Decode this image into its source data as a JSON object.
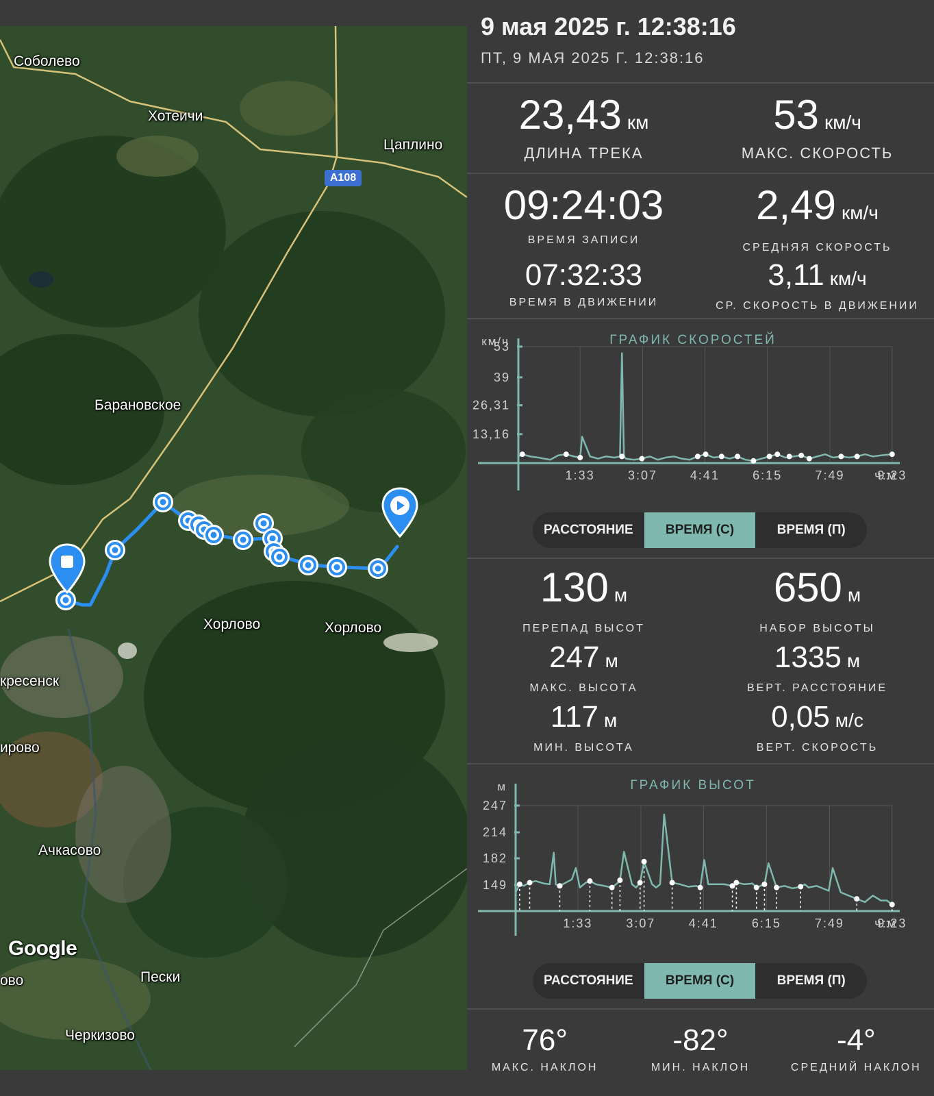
{
  "map": {
    "places": [
      {
        "name": "Соболево"
      },
      {
        "name": "Хотеичи"
      },
      {
        "name": "Цаплино"
      },
      {
        "name": "Барановское"
      },
      {
        "name": "Хорлово"
      },
      {
        "name": "Хорлово"
      },
      {
        "name": "кресенск"
      },
      {
        "name": "ирово"
      },
      {
        "name": "Ачкасово"
      },
      {
        "name": "Пески"
      },
      {
        "name": "Черкизово"
      },
      {
        "name": "ово"
      }
    ],
    "road_badge": "A108",
    "logo": "Google",
    "start_marker_icon": "play-icon",
    "end_marker_icon": "stop-icon",
    "track_color": "#2b8ef0"
  },
  "header": {
    "title": "9 мая 2025 г. 12:38:16",
    "subtitle": "ПТ, 9 МАЯ 2025 Г. 12:38:16"
  },
  "stats": {
    "track_length": {
      "value": "23,43",
      "unit": "км",
      "label": "ДЛИНА ТРЕКА"
    },
    "max_speed": {
      "value": "53",
      "unit": "км/ч",
      "label": "МАКС. СКОРОСТЬ"
    },
    "record_time": {
      "value": "09:24:03",
      "label": "ВРЕМЯ ЗАПИСИ"
    },
    "avg_speed": {
      "value": "2,49",
      "unit": "км/ч",
      "label": "СРЕДНЯЯ СКОРОСТЬ"
    },
    "moving_time": {
      "value": "07:32:33",
      "label": "ВРЕМЯ В ДВИЖЕНИИ"
    },
    "avg_moving_speed": {
      "value": "3,11",
      "unit": "км/ч",
      "label": "СР. СКОРОСТЬ В ДВИЖЕНИИ"
    },
    "elev_diff": {
      "value": "130",
      "unit": "м",
      "label": "ПЕРЕПАД ВЫСОТ"
    },
    "elev_gain": {
      "value": "650",
      "unit": "м",
      "label": "НАБОР ВЫСОТЫ"
    },
    "max_elev": {
      "value": "247",
      "unit": "м",
      "label": "МАКС. ВЫСОТА"
    },
    "vert_dist": {
      "value": "1335",
      "unit": "м",
      "label": "ВЕРТ. РАССТОЯНИЕ"
    },
    "min_elev": {
      "value": "117",
      "unit": "м",
      "label": "МИН. ВЫСОТА"
    },
    "vert_speed": {
      "value": "0,05",
      "unit": "м/с",
      "label": "ВЕРТ. СКОРОСТЬ"
    },
    "max_slope": {
      "value": "76°",
      "label": "МАКС. НАКЛОН"
    },
    "min_slope": {
      "value": "-82°",
      "label": "МИН. НАКЛОН"
    },
    "avg_slope": {
      "value": "-4°",
      "label": "СРЕДНИЙ НАКЛОН"
    }
  },
  "toggles": {
    "distance": "РАССТОЯНИЕ",
    "time_s": "ВРЕМЯ (С)",
    "time_p": "ВРЕМЯ (П)",
    "active": "time_s"
  },
  "colors": {
    "accent": "#7fb8ae",
    "bg": "#3a3a3a"
  },
  "chart_data": [
    {
      "type": "line",
      "title": "ГРАФИК СКОРОСТЕЙ",
      "ylabel": "км/ч",
      "xlabel": "ч:м",
      "yticks": [
        "53",
        "39",
        "26,31",
        "13,16"
      ],
      "ytick_values": [
        53,
        39,
        26.31,
        13.16
      ],
      "xticks": [
        "1:33",
        "3:07",
        "4:41",
        "6:15",
        "7:49",
        "9:23"
      ],
      "xtick_values": [
        1.55,
        3.12,
        4.68,
        6.25,
        7.82,
        9.38
      ],
      "ylim": [
        0,
        53
      ],
      "xlim": [
        0,
        9.4
      ],
      "grid": true,
      "series": [
        {
          "x": [
            0,
            0.1,
            0.3,
            0.5,
            0.8,
            1.0,
            1.2,
            1.4,
            1.55,
            1.6,
            1.8,
            2.0,
            2.2,
            2.4,
            2.55,
            2.6,
            2.65,
            2.7,
            2.9,
            3.1,
            3.3,
            3.5,
            3.7,
            3.9,
            4.1,
            4.3,
            4.5,
            4.7,
            4.9,
            5.1,
            5.3,
            5.5,
            5.7,
            5.9,
            6.1,
            6.3,
            6.5,
            6.7,
            6.9,
            7.1,
            7.3,
            7.5,
            7.7,
            7.9,
            8.1,
            8.3,
            8.5,
            8.7,
            8.9,
            9.1,
            9.38
          ],
          "y": [
            3,
            4,
            3,
            2.5,
            1.5,
            3.5,
            4,
            3,
            2.5,
            12,
            3,
            2,
            3,
            2.5,
            3,
            50,
            3,
            2,
            1.5,
            2,
            3,
            1.5,
            2.5,
            3,
            2,
            1.5,
            3,
            4,
            2.5,
            3,
            2,
            3,
            1.5,
            1,
            2,
            3,
            4,
            2.5,
            3,
            3.5,
            2,
            3,
            4,
            2.5,
            3,
            2.5,
            3,
            4,
            3,
            3.5,
            4
          ]
        }
      ],
      "points": [
        {
          "x": 0.1,
          "y": 4
        },
        {
          "x": 1.2,
          "y": 4
        },
        {
          "x": 1.55,
          "y": 2.5
        },
        {
          "x": 2.6,
          "y": 3
        },
        {
          "x": 3.1,
          "y": 2
        },
        {
          "x": 4.5,
          "y": 3
        },
        {
          "x": 4.7,
          "y": 4
        },
        {
          "x": 5.1,
          "y": 3
        },
        {
          "x": 5.5,
          "y": 3
        },
        {
          "x": 5.9,
          "y": 1
        },
        {
          "x": 6.3,
          "y": 3
        },
        {
          "x": 6.5,
          "y": 4
        },
        {
          "x": 6.8,
          "y": 3
        },
        {
          "x": 7.1,
          "y": 3.5
        },
        {
          "x": 7.3,
          "y": 2
        },
        {
          "x": 8.1,
          "y": 3
        },
        {
          "x": 8.5,
          "y": 3
        },
        {
          "x": 9.38,
          "y": 4
        }
      ]
    },
    {
      "type": "line",
      "title": "ГРАФИК ВЫСОТ",
      "ylabel": "м",
      "xlabel": "ч:м",
      "yticks": [
        "247",
        "214",
        "182",
        "149"
      ],
      "ytick_values": [
        247,
        214,
        182,
        149
      ],
      "xticks": [
        "1:33",
        "3:07",
        "4:41",
        "6:15",
        "7:49",
        "9:23"
      ],
      "xtick_values": [
        1.55,
        3.12,
        4.68,
        6.25,
        7.82,
        9.38
      ],
      "ylim": [
        117,
        247
      ],
      "xlim": [
        0,
        9.4
      ],
      "grid": true,
      "series": [
        {
          "x": [
            0,
            0.1,
            0.2,
            0.35,
            0.5,
            0.7,
            0.85,
            0.95,
            1.0,
            1.1,
            1.25,
            1.4,
            1.5,
            1.6,
            1.75,
            1.85,
            2.0,
            2.2,
            2.4,
            2.55,
            2.6,
            2.7,
            2.9,
            3.0,
            3.1,
            3.2,
            3.4,
            3.5,
            3.6,
            3.7,
            3.9,
            4.1,
            4.3,
            4.5,
            4.6,
            4.7,
            4.8,
            5.0,
            5.2,
            5.4,
            5.5,
            5.7,
            5.9,
            6.0,
            6.1,
            6.2,
            6.3,
            6.5,
            6.7,
            6.9,
            7.1,
            7.2,
            7.3,
            7.5,
            7.7,
            7.8,
            7.9,
            8.1,
            8.3,
            8.5,
            8.7,
            8.9,
            9.1,
            9.25,
            9.38
          ],
          "y": [
            140,
            150,
            148,
            152,
            154,
            151,
            150,
            189,
            150,
            148,
            152,
            156,
            170,
            146,
            152,
            154,
            150,
            148,
            146,
            152,
            155,
            190,
            150,
            146,
            152,
            178,
            150,
            146,
            150,
            236,
            152,
            150,
            147,
            148,
            146,
            180,
            150,
            150,
            150,
            148,
            152,
            150,
            151,
            146,
            148,
            150,
            176,
            146,
            148,
            145,
            147,
            150,
            146,
            148,
            144,
            142,
            170,
            140,
            136,
            132,
            128,
            136,
            130,
            130,
            125
          ]
        }
      ],
      "points": [
        {
          "x": 0.1,
          "y": 150
        },
        {
          "x": 0.35,
          "y": 152
        },
        {
          "x": 1.1,
          "y": 148
        },
        {
          "x": 1.85,
          "y": 154
        },
        {
          "x": 2.4,
          "y": 146
        },
        {
          "x": 2.6,
          "y": 155
        },
        {
          "x": 3.1,
          "y": 152
        },
        {
          "x": 3.2,
          "y": 178
        },
        {
          "x": 3.9,
          "y": 152
        },
        {
          "x": 4.6,
          "y": 146
        },
        {
          "x": 5.4,
          "y": 148
        },
        {
          "x": 5.5,
          "y": 152
        },
        {
          "x": 6.0,
          "y": 146
        },
        {
          "x": 6.2,
          "y": 150
        },
        {
          "x": 6.5,
          "y": 146
        },
        {
          "x": 7.1,
          "y": 147
        },
        {
          "x": 8.5,
          "y": 132
        },
        {
          "x": 9.38,
          "y": 125
        }
      ]
    }
  ]
}
